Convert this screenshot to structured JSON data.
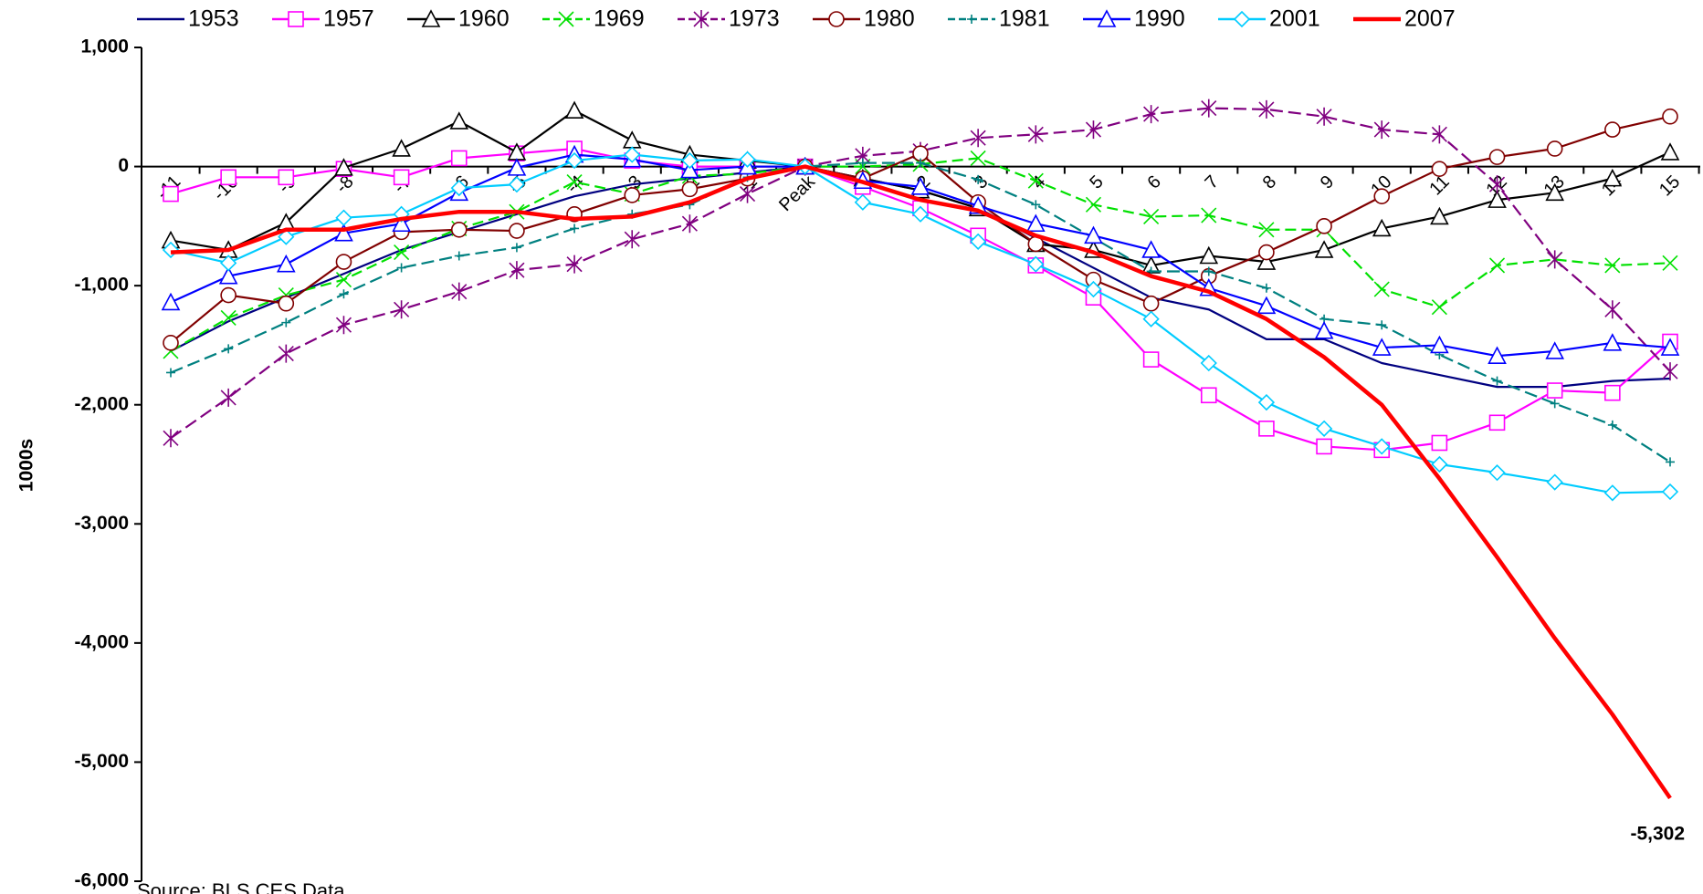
{
  "chart_data": {
    "type": "line",
    "y_label": "1000s",
    "source": "Source: BLS CES Data",
    "categories": [
      "-11",
      "-10",
      "-9",
      "-8",
      "-7",
      "-6",
      "-5",
      "-4",
      "-3",
      "-2",
      "-1",
      "Peak",
      "1",
      "2",
      "3",
      "4",
      "5",
      "6",
      "7",
      "8",
      "9",
      "10",
      "11",
      "12",
      "13",
      "14",
      "15"
    ],
    "ylim": [
      -6000,
      1000
    ],
    "yticks": [
      {
        "value": -6000,
        "label": "-6,000"
      },
      {
        "value": -5000,
        "label": "-5,000"
      },
      {
        "value": -4000,
        "label": "-4,000"
      },
      {
        "value": -3000,
        "label": "-3,000"
      },
      {
        "value": -2000,
        "label": "-2,000"
      },
      {
        "value": -1000,
        "label": "-1,000"
      },
      0,
      {
        "value": 1000,
        "label": "1,000"
      }
    ],
    "legend": "top",
    "series": [
      {
        "name": "1953",
        "color": "#000080",
        "values": [
          -1550,
          -1300,
          -1100,
          -900,
          -700,
          -550,
          -400,
          -250,
          -150,
          -100,
          -50,
          0,
          -100,
          -200,
          -350,
          -600,
          -850,
          -1100,
          -1200,
          -1450,
          -1450,
          -1650,
          -1750,
          -1850,
          -1850,
          -1800,
          -1780
        ]
      },
      {
        "name": "1957",
        "color": "#ff00ff",
        "values": [
          -230,
          -90,
          -90,
          -20,
          -90,
          70,
          110,
          150,
          50,
          0,
          0,
          0,
          -170,
          -350,
          -580,
          -830,
          -1100,
          -1620,
          -1920,
          -2200,
          -2350,
          -2380,
          -2320,
          -2150,
          -1880,
          -1900,
          -1470
        ]
      },
      {
        "name": "1960",
        "color": "#000000",
        "values": [
          -620,
          -700,
          -470,
          -10,
          150,
          380,
          120,
          470,
          220,
          100,
          50,
          0,
          -100,
          -200,
          -350,
          -650,
          -700,
          -830,
          -750,
          -800,
          -700,
          -520,
          -420,
          -280,
          -220,
          -100,
          120
        ]
      },
      {
        "name": "1969",
        "color": "#00e000",
        "values": [
          -1550,
          -1270,
          -1080,
          -950,
          -720,
          -520,
          -380,
          -130,
          -230,
          -80,
          -60,
          0,
          0,
          20,
          70,
          -120,
          -320,
          -420,
          -410,
          -530,
          -530,
          -1030,
          -1180,
          -830,
          -780,
          -830,
          -810
        ]
      },
      {
        "name": "1973",
        "color": "#800080",
        "values": [
          -2280,
          -1940,
          -1570,
          -1330,
          -1200,
          -1050,
          -870,
          -820,
          -610,
          -480,
          -230,
          0,
          90,
          130,
          240,
          270,
          310,
          440,
          490,
          480,
          420,
          310,
          270,
          -150,
          -780,
          -1200,
          -1720
        ]
      },
      {
        "name": "1980",
        "color": "#800000",
        "values": [
          -1480,
          -1080,
          -1150,
          -800,
          -550,
          -530,
          -540,
          -400,
          -240,
          -190,
          -100,
          0,
          -100,
          110,
          -300,
          -650,
          -950,
          -1150,
          -920,
          -720,
          -500,
          -250,
          -20,
          80,
          150,
          310,
          420
        ]
      },
      {
        "name": "1981",
        "color": "#008080",
        "values": [
          -1730,
          -1530,
          -1310,
          -1070,
          -850,
          -750,
          -680,
          -520,
          -400,
          -320,
          -90,
          0,
          30,
          30,
          -110,
          -320,
          -600,
          -880,
          -880,
          -1020,
          -1280,
          -1330,
          -1580,
          -1800,
          -1990,
          -2170,
          -2480
        ]
      },
      {
        "name": "1990",
        "color": "#0000ff",
        "values": [
          -1140,
          -920,
          -820,
          -560,
          -480,
          -220,
          -10,
          100,
          60,
          -30,
          0,
          0,
          -120,
          -170,
          -330,
          -480,
          -580,
          -700,
          -1020,
          -1170,
          -1380,
          -1520,
          -1500,
          -1590,
          -1550,
          -1480,
          -1520
        ]
      },
      {
        "name": "2001",
        "color": "#00ccff",
        "values": [
          -700,
          -810,
          -590,
          -430,
          -400,
          -180,
          -150,
          50,
          100,
          50,
          60,
          0,
          -300,
          -400,
          -630,
          -820,
          -1030,
          -1280,
          -1650,
          -1980,
          -2200,
          -2350,
          -2500,
          -2570,
          -2650,
          -2740,
          -2730
        ]
      },
      {
        "name": "2007",
        "color": "#ff0000",
        "values": [
          -720,
          -700,
          -530,
          -530,
          -440,
          -380,
          -380,
          -440,
          -420,
          -300,
          -100,
          0,
          -130,
          -280,
          -370,
          -580,
          -720,
          -920,
          -1050,
          -1280,
          -1600,
          -2000,
          -2620,
          -3280,
          -3960,
          -4600,
          -5302
        ],
        "value_labels": [
          null,
          null,
          null,
          null,
          null,
          null,
          null,
          null,
          null,
          null,
          null,
          null,
          null,
          null,
          null,
          null,
          null,
          null,
          null,
          null,
          null,
          null,
          null,
          null,
          null,
          null,
          "-5,302"
        ]
      }
    ]
  }
}
